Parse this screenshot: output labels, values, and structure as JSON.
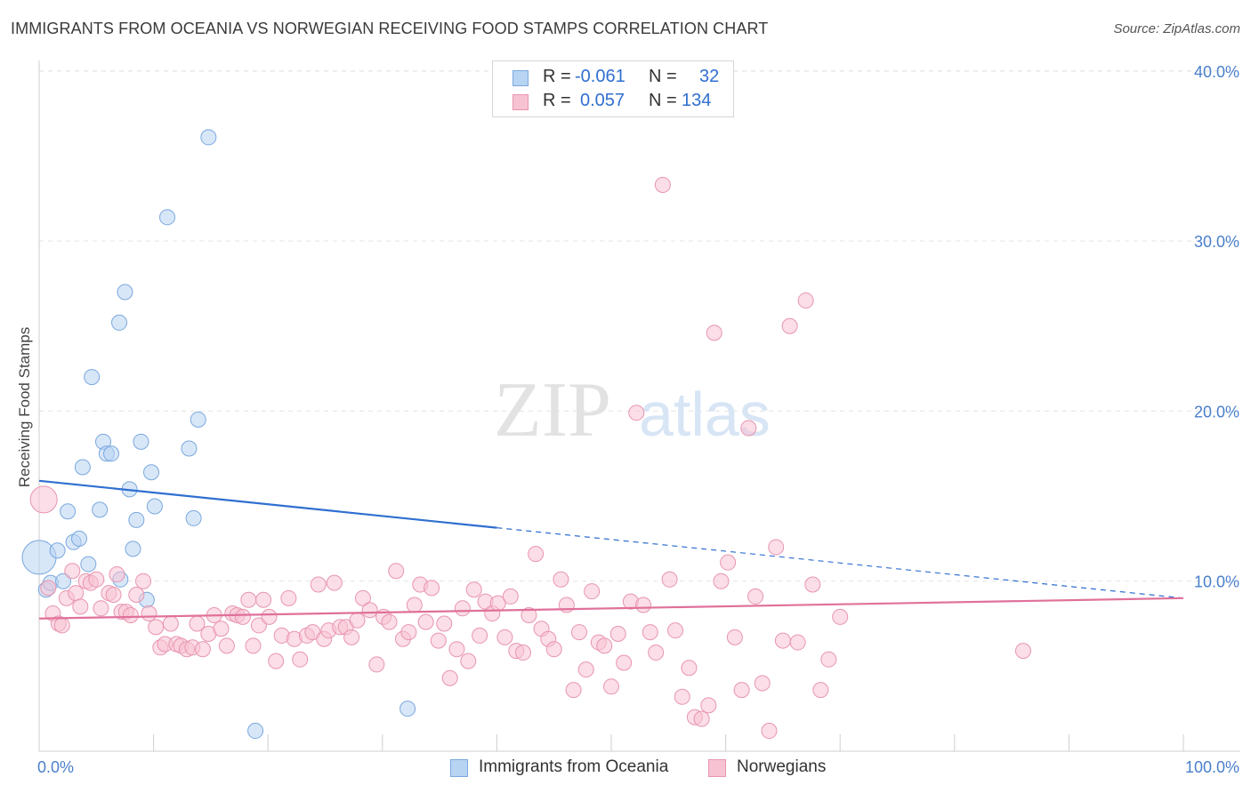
{
  "header": {
    "title": "IMMIGRANTS FROM OCEANIA VS NORWEGIAN RECEIVING FOOD STAMPS CORRELATION CHART",
    "source": "Source: ZipAtlas.com"
  },
  "legend": {
    "rows": [
      {
        "r_label": "R =",
        "r_value": "-0.061",
        "n_label": "N =",
        "n_value": "32"
      },
      {
        "r_label": "R =",
        "r_value": "0.057",
        "n_label": "N =",
        "n_value": "134"
      }
    ],
    "bottom": [
      "Immigrants from Oceania",
      "Norwegians"
    ]
  },
  "colors": {
    "oceania_fill": "#b8d4f3",
    "oceania_stroke": "#7aa8de",
    "oceania_line": "#2f6fd0",
    "norwegian_fill": "#f7c3d3",
    "norwegian_stroke": "#e895b0",
    "norwegian_line": "#e0709a",
    "tick_text": "#4a7fcb",
    "grid": "#e3e3e3"
  },
  "chart_data": {
    "type": "scatter",
    "title": "IMMIGRANTS FROM OCEANIA VS NORWEGIAN RECEIVING FOOD STAMPS CORRELATION CHART",
    "xlabel": "",
    "ylabel": "Receiving Food Stamps",
    "xlim": [
      0,
      100
    ],
    "ylim": [
      0,
      42
    ],
    "x_ticks": [
      "0.0%",
      "100.0%"
    ],
    "y_ticks": [
      {
        "value": 10,
        "label": "10.0%"
      },
      {
        "value": 20,
        "label": "20.0%"
      },
      {
        "value": 30,
        "label": "30.0%"
      },
      {
        "value": 40,
        "label": "40.0%"
      }
    ],
    "grid": "horizontal dashed",
    "watermark": "ZIPatlas",
    "series": [
      {
        "name": "Immigrants from Oceania",
        "trend": {
          "x0": 0,
          "y0": 15.9,
          "x1": 100,
          "y1": 9.0,
          "solid_until": 40
        },
        "points": [
          [
            0.0,
            11.4,
            3
          ],
          [
            0.6,
            9.5,
            1
          ],
          [
            1.0,
            9.9,
            1
          ],
          [
            1.6,
            11.8,
            1
          ],
          [
            2.1,
            10.0,
            1
          ],
          [
            2.5,
            14.1,
            1
          ],
          [
            3.0,
            12.3,
            1
          ],
          [
            3.5,
            12.5,
            1
          ],
          [
            3.8,
            16.7,
            1
          ],
          [
            4.3,
            11.0,
            1
          ],
          [
            4.6,
            22.0,
            1
          ],
          [
            5.3,
            14.2,
            1
          ],
          [
            5.6,
            18.2,
            1
          ],
          [
            5.9,
            17.5,
            1
          ],
          [
            6.3,
            17.5,
            1
          ],
          [
            7.1,
            10.1,
            1
          ],
          [
            7.5,
            27.0,
            1
          ],
          [
            7.9,
            15.4,
            1
          ],
          [
            8.2,
            11.9,
            1
          ],
          [
            8.5,
            13.6,
            1
          ],
          [
            8.9,
            18.2,
            1
          ],
          [
            7.0,
            25.2,
            1
          ],
          [
            9.8,
            16.4,
            1
          ],
          [
            10.1,
            14.4,
            1
          ],
          [
            11.2,
            31.4,
            1
          ],
          [
            13.1,
            17.8,
            1
          ],
          [
            13.5,
            13.7,
            1
          ],
          [
            13.9,
            19.5,
            1
          ],
          [
            14.8,
            36.1,
            1
          ],
          [
            9.4,
            8.9,
            1
          ],
          [
            18.9,
            1.2,
            1
          ],
          [
            32.2,
            2.5,
            1
          ]
        ]
      },
      {
        "name": "Norwegians",
        "trend": {
          "x0": 0,
          "y0": 7.8,
          "x1": 100,
          "y1": 9.0,
          "solid_until": 100
        },
        "points": [
          [
            0.4,
            14.8,
            2
          ],
          [
            0.8,
            9.6,
            1
          ],
          [
            1.2,
            8.1,
            1
          ],
          [
            1.7,
            7.5,
            1
          ],
          [
            2.0,
            7.4,
            1
          ],
          [
            2.4,
            9.0,
            1
          ],
          [
            2.9,
            10.6,
            1
          ],
          [
            3.2,
            9.3,
            1
          ],
          [
            3.6,
            8.5,
            1
          ],
          [
            4.1,
            10.0,
            1
          ],
          [
            4.5,
            9.9,
            1
          ],
          [
            5.0,
            10.1,
            1
          ],
          [
            5.4,
            8.4,
            1
          ],
          [
            6.1,
            9.3,
            1
          ],
          [
            6.5,
            9.2,
            1
          ],
          [
            6.8,
            10.4,
            1
          ],
          [
            7.2,
            8.2,
            1
          ],
          [
            7.6,
            8.2,
            1
          ],
          [
            8.0,
            8.0,
            1
          ],
          [
            8.5,
            9.2,
            1
          ],
          [
            9.1,
            10.0,
            1
          ],
          [
            9.6,
            8.1,
            1
          ],
          [
            10.2,
            7.3,
            1
          ],
          [
            10.6,
            6.1,
            1
          ],
          [
            11.0,
            6.3,
            1
          ],
          [
            11.5,
            7.5,
            1
          ],
          [
            12.0,
            6.3,
            1
          ],
          [
            12.4,
            6.2,
            1
          ],
          [
            12.9,
            6.0,
            1
          ],
          [
            13.4,
            6.1,
            1
          ],
          [
            13.8,
            7.5,
            1
          ],
          [
            14.3,
            6.0,
            1
          ],
          [
            14.8,
            6.9,
            1
          ],
          [
            15.3,
            8.0,
            1
          ],
          [
            15.9,
            7.2,
            1
          ],
          [
            16.4,
            6.2,
            1
          ],
          [
            16.9,
            8.1,
            1
          ],
          [
            17.3,
            8.0,
            1
          ],
          [
            17.8,
            7.9,
            1
          ],
          [
            18.3,
            8.9,
            1
          ],
          [
            18.7,
            6.2,
            1
          ],
          [
            19.2,
            7.4,
            1
          ],
          [
            19.6,
            8.9,
            1
          ],
          [
            20.1,
            7.9,
            1
          ],
          [
            20.7,
            5.3,
            1
          ],
          [
            21.2,
            6.8,
            1
          ],
          [
            21.8,
            9.0,
            1
          ],
          [
            22.3,
            6.6,
            1
          ],
          [
            22.8,
            5.4,
            1
          ],
          [
            23.4,
            6.8,
            1
          ],
          [
            23.9,
            7.0,
            1
          ],
          [
            24.4,
            9.8,
            1
          ],
          [
            24.9,
            6.6,
            1
          ],
          [
            25.3,
            7.1,
            1
          ],
          [
            25.8,
            9.9,
            1
          ],
          [
            26.3,
            7.3,
            1
          ],
          [
            26.8,
            7.3,
            1
          ],
          [
            27.3,
            6.7,
            1
          ],
          [
            27.8,
            7.7,
            1
          ],
          [
            28.3,
            9.0,
            1
          ],
          [
            28.9,
            8.3,
            1
          ],
          [
            29.5,
            5.1,
            1
          ],
          [
            30.1,
            7.9,
            1
          ],
          [
            30.6,
            7.6,
            1
          ],
          [
            31.2,
            10.6,
            1
          ],
          [
            31.8,
            6.6,
            1
          ],
          [
            32.3,
            7.0,
            1
          ],
          [
            32.8,
            8.6,
            1
          ],
          [
            33.3,
            9.8,
            1
          ],
          [
            33.8,
            7.6,
            1
          ],
          [
            34.3,
            9.6,
            1
          ],
          [
            34.9,
            6.5,
            1
          ],
          [
            35.4,
            7.5,
            1
          ],
          [
            35.9,
            4.3,
            1
          ],
          [
            36.5,
            6.0,
            1
          ],
          [
            37.0,
            8.4,
            1
          ],
          [
            37.5,
            5.3,
            1
          ],
          [
            38.0,
            9.5,
            1
          ],
          [
            38.5,
            6.8,
            1
          ],
          [
            39.0,
            8.8,
            1
          ],
          [
            39.6,
            8.1,
            1
          ],
          [
            40.1,
            8.7,
            1
          ],
          [
            40.7,
            6.7,
            1
          ],
          [
            41.2,
            9.1,
            1
          ],
          [
            41.7,
            5.9,
            1
          ],
          [
            42.3,
            5.8,
            1
          ],
          [
            42.8,
            8.0,
            1
          ],
          [
            43.4,
            11.6,
            1
          ],
          [
            43.9,
            7.2,
            1
          ],
          [
            44.5,
            6.6,
            1
          ],
          [
            45.0,
            6.0,
            1
          ],
          [
            45.6,
            10.1,
            1
          ],
          [
            46.1,
            8.6,
            1
          ],
          [
            46.7,
            3.6,
            1
          ],
          [
            47.2,
            7.0,
            1
          ],
          [
            47.8,
            4.8,
            1
          ],
          [
            48.3,
            9.4,
            1
          ],
          [
            48.9,
            6.4,
            1
          ],
          [
            49.4,
            6.2,
            1
          ],
          [
            50.0,
            3.8,
            1
          ],
          [
            50.6,
            6.9,
            1
          ],
          [
            51.1,
            5.2,
            1
          ],
          [
            51.7,
            8.8,
            1
          ],
          [
            52.2,
            19.9,
            1
          ],
          [
            52.8,
            8.6,
            1
          ],
          [
            53.4,
            7.0,
            1
          ],
          [
            53.9,
            5.8,
            1
          ],
          [
            54.5,
            33.3,
            1
          ],
          [
            55.1,
            10.1,
            1
          ],
          [
            55.6,
            7.1,
            1
          ],
          [
            56.2,
            3.2,
            1
          ],
          [
            56.8,
            4.9,
            1
          ],
          [
            57.3,
            2.0,
            1
          ],
          [
            57.9,
            1.9,
            1
          ],
          [
            58.5,
            2.7,
            1
          ],
          [
            59.0,
            24.6,
            1
          ],
          [
            59.6,
            10.0,
            1
          ],
          [
            60.2,
            11.1,
            1
          ],
          [
            60.8,
            6.7,
            1
          ],
          [
            61.4,
            3.6,
            1
          ],
          [
            62.0,
            19.0,
            1
          ],
          [
            62.6,
            9.1,
            1
          ],
          [
            63.2,
            4.0,
            1
          ],
          [
            63.8,
            1.2,
            1
          ],
          [
            64.4,
            12.0,
            1
          ],
          [
            65.0,
            6.5,
            1
          ],
          [
            65.6,
            25.0,
            1
          ],
          [
            66.3,
            6.4,
            1
          ],
          [
            67.0,
            26.5,
            1
          ],
          [
            67.6,
            9.8,
            1
          ],
          [
            68.3,
            3.6,
            1
          ],
          [
            69.0,
            5.4,
            1
          ],
          [
            70.0,
            7.9,
            1
          ],
          [
            86.0,
            5.9,
            1
          ]
        ]
      }
    ]
  }
}
